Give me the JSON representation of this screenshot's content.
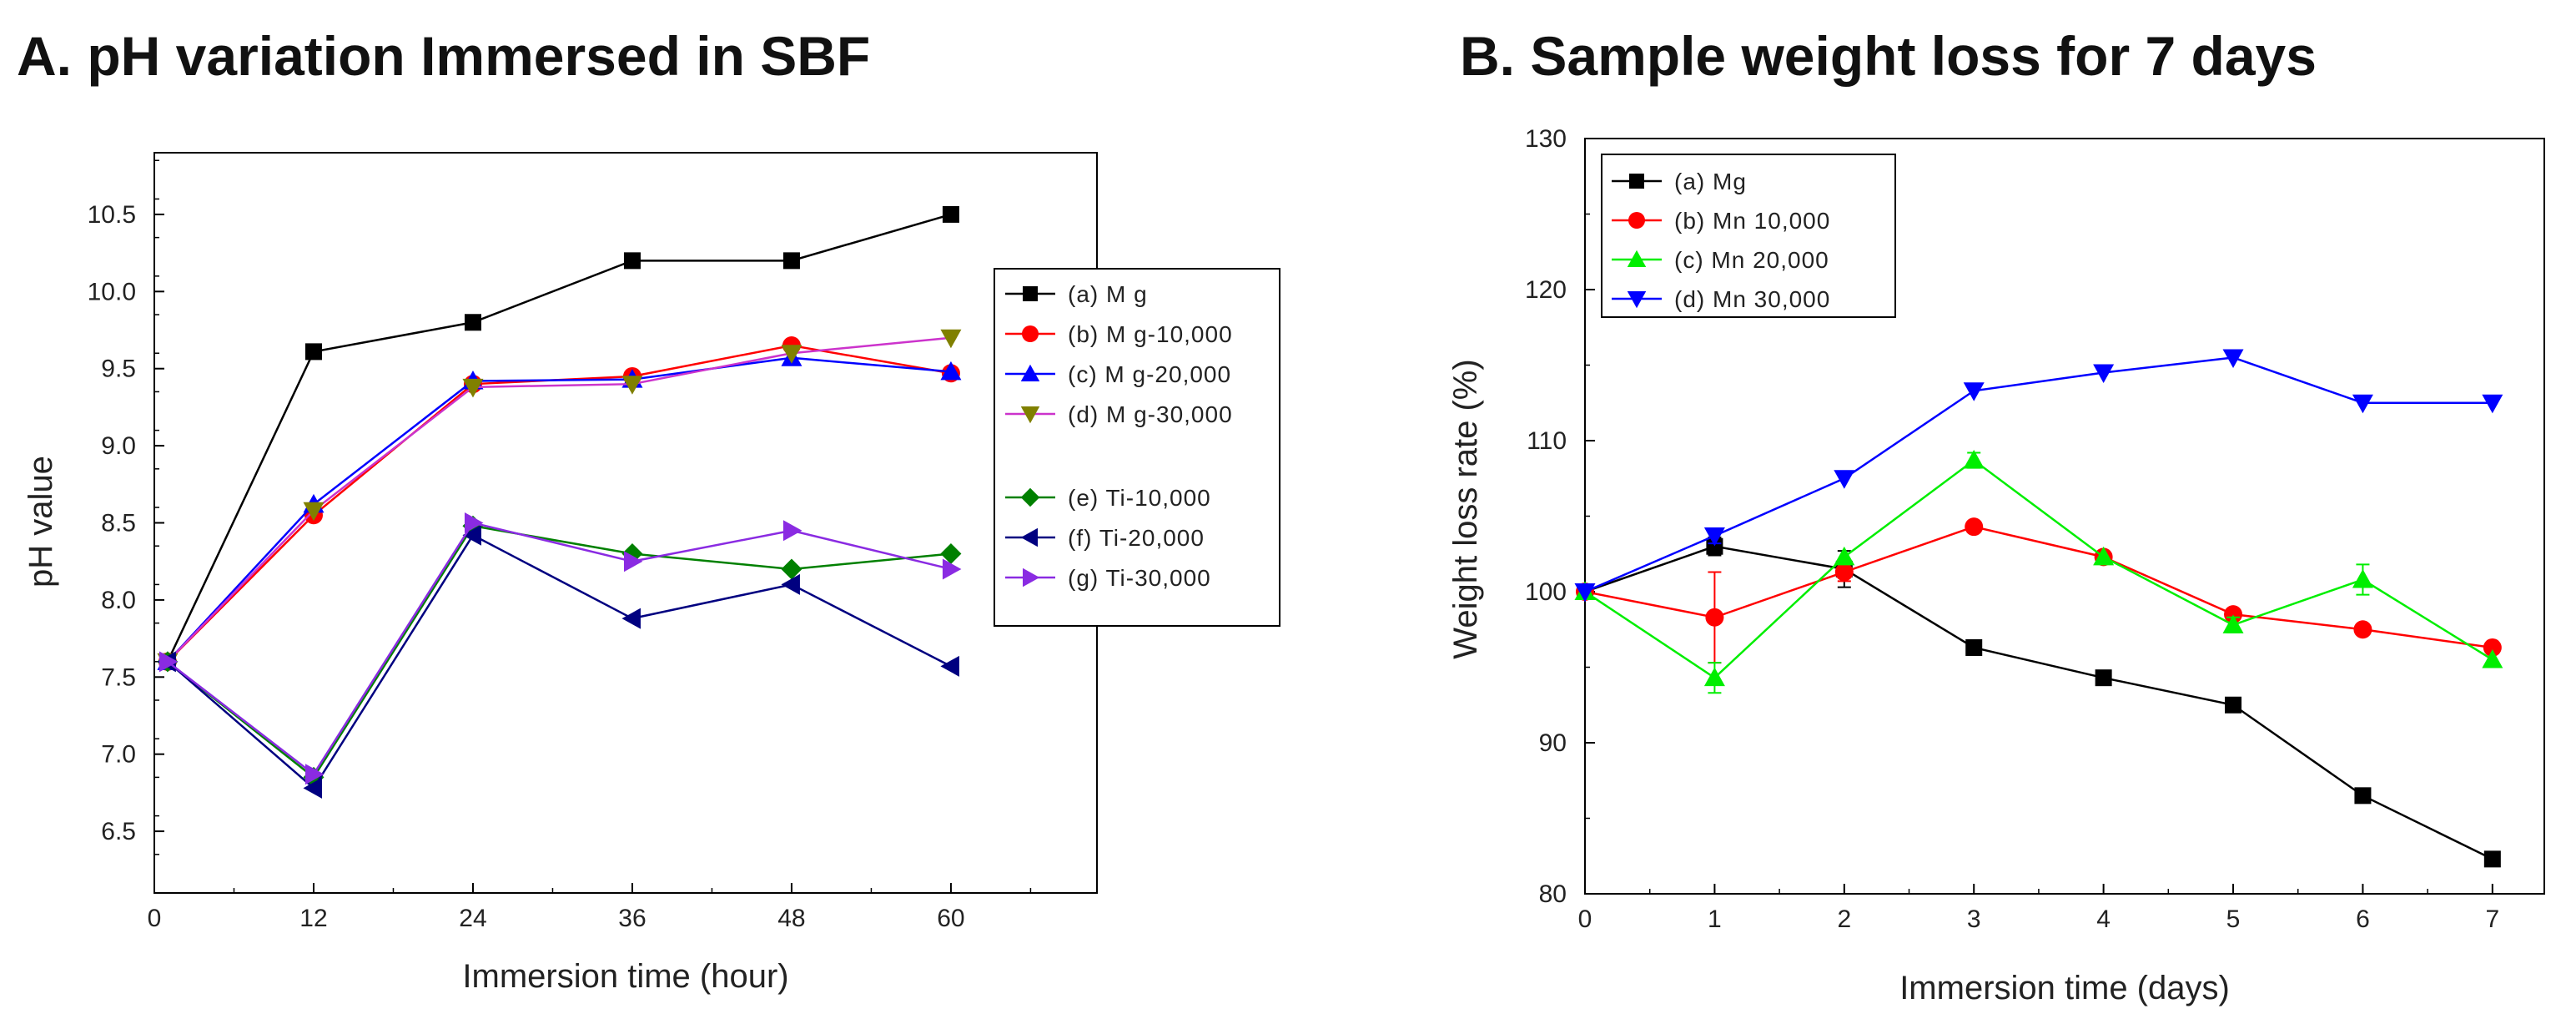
{
  "chart_data": [
    {
      "type": "line",
      "title": "A. pH variation Immersed in SBF",
      "xlabel": "Immersion time (hour)",
      "ylabel": "pH value",
      "xlim": [
        0,
        71
      ],
      "ylim": [
        6.1,
        10.9
      ],
      "xticks": [
        "0",
        "12",
        "24",
        "36",
        "48",
        "60"
      ],
      "yticks": [
        "6.5",
        "7.0",
        "7.5",
        "8.0",
        "8.5",
        "9.0",
        "9.5",
        "10.0",
        "10.5"
      ],
      "grid": false,
      "legend_position": "right, outside plot",
      "x": [
        1,
        12,
        24,
        36,
        48,
        60
      ],
      "series": [
        {
          "name": "(a) M g",
          "color": "#000000",
          "marker": "square",
          "values": [
            7.6,
            9.61,
            9.8,
            10.2,
            10.2,
            10.5
          ]
        },
        {
          "name": "(b) M g-10,000",
          "color": "#ff0000",
          "marker": "circle",
          "values": [
            7.6,
            8.55,
            9.4,
            9.45,
            9.65,
            9.47
          ]
        },
        {
          "name": "(c) M g-20,000",
          "color": "#0000ff",
          "marker": "triangle-up",
          "values": [
            7.6,
            8.62,
            9.42,
            9.43,
            9.57,
            9.48
          ]
        },
        {
          "name": "(d) M g-30,000",
          "color": "#808000",
          "marker": "triangle-down",
          "lineColor": "#cc33cc",
          "values": [
            7.6,
            8.58,
            9.38,
            9.4,
            9.6,
            9.7
          ]
        },
        {
          "name": "(e) Ti-10,000",
          "color": "#008000",
          "marker": "diamond",
          "values": [
            7.6,
            6.85,
            8.48,
            8.3,
            8.2,
            8.3
          ]
        },
        {
          "name": "(f) Ti-20,000",
          "color": "#000080",
          "marker": "triangle-left",
          "values": [
            7.6,
            6.78,
            8.42,
            7.88,
            8.1,
            7.57
          ]
        },
        {
          "name": "(g) Ti-30,000",
          "color": "#8a2be2",
          "marker": "triangle-right",
          "values": [
            7.6,
            6.87,
            8.5,
            8.25,
            8.45,
            8.2
          ]
        }
      ]
    },
    {
      "type": "line",
      "title": "B. Sample weight loss for 7 days",
      "xlabel": "Immersion time (days)",
      "ylabel": "Weight loss rate (%)",
      "xlim": [
        0,
        7.4
      ],
      "ylim": [
        80,
        130
      ],
      "xticks": [
        "0",
        "1",
        "2",
        "3",
        "4",
        "5",
        "6",
        "7"
      ],
      "yticks": [
        "80",
        "90",
        "100",
        "110",
        "120",
        "130"
      ],
      "grid": false,
      "legend_position": "top-left",
      "x": [
        0,
        1,
        2,
        3,
        4,
        5,
        6,
        7
      ],
      "series": [
        {
          "name": "(a) Mg",
          "color": "#000000",
          "marker": "square",
          "values": [
            100,
            103,
            101.5,
            96.3,
            94.3,
            92.5,
            86.5,
            82.3
          ],
          "errors": [
            0,
            0.6,
            1.2,
            0,
            0,
            0,
            0,
            0
          ]
        },
        {
          "name": "(b) Mn 10,000",
          "color": "#ff0000",
          "marker": "circle",
          "values": [
            100,
            98.3,
            101.3,
            104.3,
            102.3,
            98.5,
            97.5,
            96.3
          ],
          "errors": [
            0,
            3.0,
            0.6,
            0,
            0,
            0,
            0,
            0
          ]
        },
        {
          "name": "(c) Mn 20,000",
          "color": "#00ee00",
          "marker": "triangle-up",
          "values": [
            100,
            94.3,
            102.3,
            108.7,
            102.3,
            97.8,
            100.8,
            95.5
          ],
          "errors": [
            0,
            1.0,
            0,
            0.5,
            0,
            0.5,
            1.0,
            0
          ]
        },
        {
          "name": "(d) Mn 30,000",
          "color": "#0000ff",
          "marker": "triangle-down",
          "values": [
            100,
            103.7,
            107.5,
            113.3,
            114.5,
            115.5,
            112.5,
            112.5
          ],
          "errors": [
            0,
            0.5,
            0,
            0,
            0,
            0,
            0,
            0
          ]
        }
      ]
    }
  ]
}
